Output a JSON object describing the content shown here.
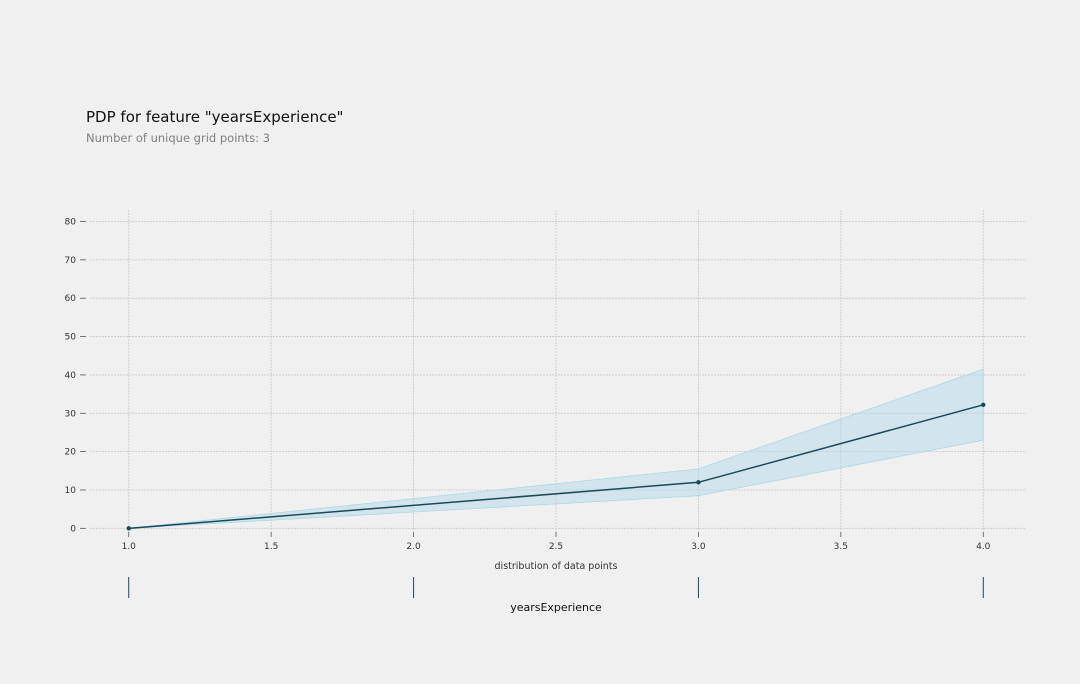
{
  "title": "PDP for feature \"yearsExperience\"",
  "subtitle": "Number of unique grid points: 3",
  "chart_data": {
    "type": "line",
    "x": [
      1.0,
      3.0,
      4.0
    ],
    "series": [
      {
        "values": [
          0,
          12,
          32.2
        ],
        "lower": [
          0,
          8.5,
          23
        ],
        "upper": [
          0,
          15.5,
          41.5
        ]
      }
    ],
    "xlim": [
      0.85,
      4.15
    ],
    "ylim": [
      -2,
      83
    ],
    "x_ticks": [
      "1.0",
      "1.5",
      "2.0",
      "2.5",
      "3.0",
      "3.5",
      "4.0"
    ],
    "y_ticks": [
      "0",
      "10",
      "20",
      "30",
      "40",
      "50",
      "60",
      "70",
      "80"
    ],
    "distribution_points": [
      1.0,
      2.0,
      3.0,
      4.0
    ],
    "distribution_label": "distribution of data points",
    "xlabel": "yearsExperience",
    "grid": true,
    "colors": {
      "line": "#1a4a5a",
      "band": "#add8e6",
      "grid": "#c8c8c8",
      "background": "#f0f0f0"
    }
  }
}
